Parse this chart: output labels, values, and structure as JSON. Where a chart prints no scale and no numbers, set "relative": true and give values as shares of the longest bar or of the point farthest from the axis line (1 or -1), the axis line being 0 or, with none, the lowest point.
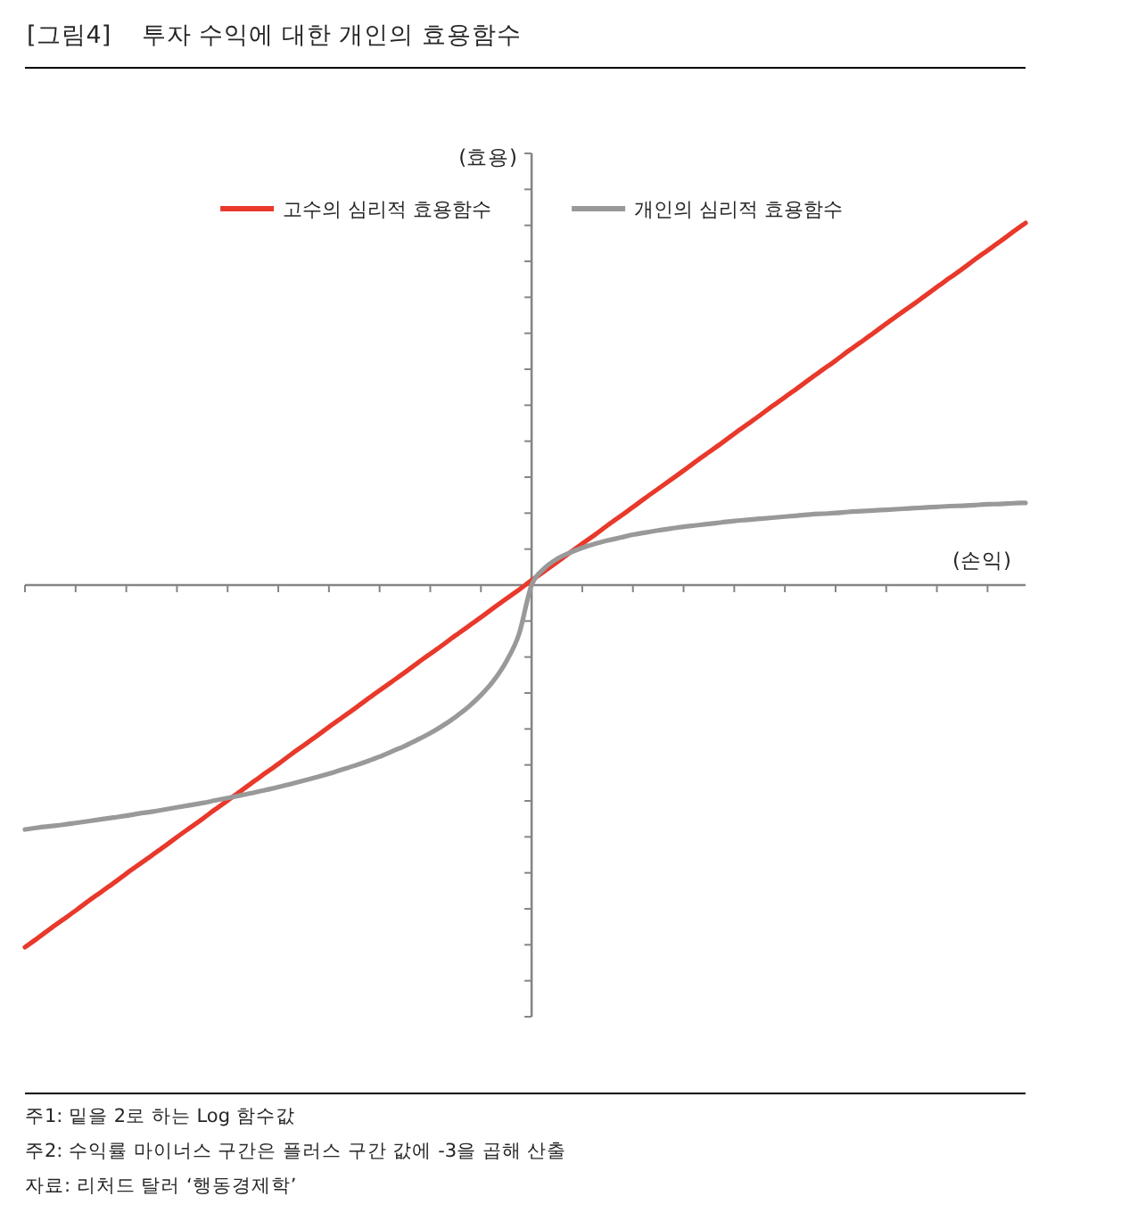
{
  "chart_data": {
    "type": "line",
    "title": "[그림4]    투자 수익에 대한 개인의 효용함수",
    "xlabel": "(손익)",
    "ylabel": "(효용)",
    "relative": true,
    "legend": "top",
    "categories": [
      null,
      null,
      null,
      null,
      null,
      null,
      null,
      null,
      null,
      null,
      null,
      null,
      null,
      null,
      null,
      null,
      null,
      null,
      null,
      null,
      null,
      null,
      null,
      null,
      null,
      null,
      null,
      null,
      null,
      null,
      null,
      null,
      null,
      null,
      null,
      null,
      null,
      null,
      null,
      null,
      null,
      null,
      null,
      null,
      null,
      null,
      null,
      null,
      null,
      null,
      null,
      null,
      null,
      null,
      null,
      null,
      null,
      null,
      null,
      null,
      null,
      null,
      null,
      null,
      null,
      null,
      null,
      null,
      null,
      null,
      null,
      null,
      null,
      null,
      null,
      null,
      null,
      null,
      null,
      null
    ],
    "series": [
      {
        "name": "고수의 심리적 효용함수",
        "color": "#e8392b",
        "values": [
          -1.0,
          -0.975,
          -0.949,
          -0.924,
          -0.899,
          -0.873,
          -0.848,
          -0.823,
          -0.797,
          -0.772,
          -0.747,
          -0.722,
          -0.696,
          -0.671,
          -0.646,
          -0.62,
          -0.595,
          -0.57,
          -0.544,
          -0.519,
          -0.494,
          -0.468,
          -0.443,
          -0.418,
          -0.392,
          -0.367,
          -0.342,
          -0.316,
          -0.291,
          -0.266,
          -0.241,
          -0.215,
          -0.19,
          -0.165,
          -0.139,
          -0.114,
          -0.089,
          -0.063,
          -0.038,
          -0.013,
          0.013,
          0.038,
          0.063,
          0.089,
          0.114,
          0.139,
          0.165,
          0.19,
          0.215,
          0.241,
          0.266,
          0.291,
          0.316,
          0.342,
          0.367,
          0.392,
          0.418,
          0.443,
          0.468,
          0.494,
          0.519,
          0.544,
          0.57,
          0.595,
          0.62,
          0.646,
          0.671,
          0.696,
          0.722,
          0.747,
          0.772,
          0.797,
          0.823,
          0.848,
          0.873,
          0.899,
          0.924,
          0.949,
          0.975,
          1.0
        ]
      },
      {
        "name": "개인의 심리적 효용함수",
        "color": "#999999",
        "values": [
          -0.675,
          -0.67,
          -0.666,
          -0.662,
          -0.657,
          -0.652,
          -0.647,
          -0.642,
          -0.637,
          -0.631,
          -0.626,
          -0.62,
          -0.614,
          -0.608,
          -0.602,
          -0.595,
          -0.588,
          -0.581,
          -0.574,
          -0.566,
          -0.558,
          -0.549,
          -0.54,
          -0.531,
          -0.521,
          -0.51,
          -0.499,
          -0.487,
          -0.474,
          -0.459,
          -0.444,
          -0.427,
          -0.409,
          -0.388,
          -0.364,
          -0.337,
          -0.304,
          -0.264,
          -0.211,
          -0.136,
          0,
          0.046,
          0.072,
          0.089,
          0.103,
          0.114,
          0.123,
          0.131,
          0.139,
          0.145,
          0.151,
          0.156,
          0.161,
          0.165,
          0.169,
          0.173,
          0.177,
          0.18,
          0.183,
          0.186,
          0.189,
          0.192,
          0.195,
          0.197,
          0.199,
          0.202,
          0.204,
          0.206,
          0.208,
          0.21,
          0.212,
          0.214,
          0.216,
          0.218,
          0.219,
          0.221,
          0.223,
          0.224,
          0.226,
          0.227
        ]
      }
    ],
    "annotations": [
      "주1: 밑을 2로 하는 Log 함수값",
      "주2: 수익률 마이너스 구간은 플러스 구간 값에 -3을 곱해 산출",
      "자료: 리처드 탈러 ‘행동경제학’"
    ]
  }
}
